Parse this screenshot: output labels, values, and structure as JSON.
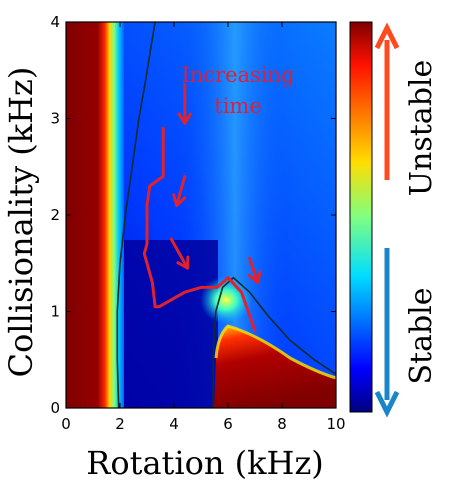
{
  "chart_data": {
    "type": "heatmap",
    "xlabel": "Rotation (kHz)",
    "ylabel": "Collisionality (kHz)",
    "xlim": [
      0,
      10
    ],
    "ylim": [
      0,
      4
    ],
    "x_ticks": [
      "0",
      "2",
      "4",
      "6",
      "8",
      "10"
    ],
    "y_ticks": [
      "0",
      "1",
      "2",
      "3",
      "4"
    ],
    "colormap": "jet",
    "colorbar_labels": {
      "top": "Unstable",
      "bottom": "Stable"
    },
    "annotation": {
      "line1": "Increasing",
      "line2": "time"
    },
    "regions": [
      {
        "name": "unstable-left-band",
        "x_range": [
          0,
          1.9
        ],
        "y_range": [
          0,
          4
        ]
      },
      {
        "name": "unstable-lower-right",
        "x_range": [
          5.7,
          10
        ],
        "y_range": [
          0,
          1.3
        ]
      }
    ],
    "boundary_contour_1": {
      "x": [
        1.95,
        1.9,
        1.9,
        2.0,
        2.2,
        2.45,
        2.7,
        2.95,
        3.15,
        3.3
      ],
      "y": [
        0,
        0.5,
        1.0,
        1.5,
        2.0,
        2.5,
        3.0,
        3.4,
        3.75,
        4.0
      ]
    },
    "boundary_contour_2": {
      "x": [
        5.45,
        5.45,
        5.55,
        5.8,
        6.2,
        6.8,
        7.5,
        8.3,
        9.2,
        10.0
      ],
      "y": [
        0,
        0.6,
        1.0,
        1.25,
        1.35,
        1.2,
        0.95,
        0.7,
        0.5,
        0.35
      ]
    },
    "trajectory": {
      "x": [
        3.6,
        3.6,
        3.1,
        3.0,
        3.0,
        2.9,
        3.2,
        3.3,
        3.45,
        4.4,
        5.0,
        5.6,
        6.0,
        6.5,
        7.0
      ],
      "y": [
        2.9,
        2.4,
        2.3,
        2.1,
        1.7,
        1.6,
        1.3,
        1.05,
        1.05,
        1.2,
        1.25,
        1.25,
        1.35,
        1.2,
        0.8
      ]
    },
    "arrows": [
      {
        "x": [
          4.4,
          4.4
        ],
        "y": [
          3.35,
          2.95
        ]
      },
      {
        "x": [
          4.4,
          4.1
        ],
        "y": [
          2.4,
          2.1
        ]
      },
      {
        "x": [
          3.9,
          4.5
        ],
        "y": [
          1.75,
          1.45
        ]
      },
      {
        "x": [
          6.8,
          7.1
        ],
        "y": [
          1.55,
          1.3
        ]
      }
    ],
    "colors": {
      "trajectory": "#e0222e",
      "arrow": "#e0222e",
      "contour": "#0e2c2c",
      "unstable_arrow": "#ff4a1f",
      "stable_arrow": "#1a86c8"
    }
  }
}
